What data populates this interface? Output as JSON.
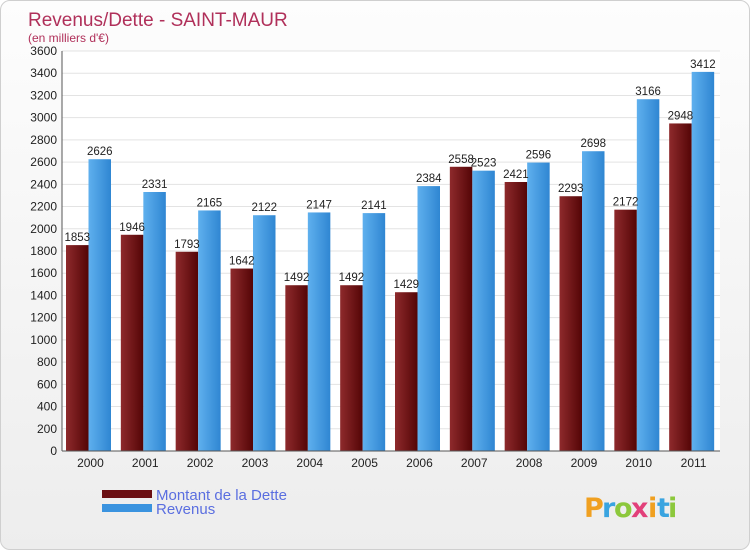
{
  "chart_data": {
    "type": "bar",
    "title": "Revenus/Dette - SAINT-MAUR",
    "subtitle": "(en milliers d'€)",
    "categories": [
      "2000",
      "2001",
      "2002",
      "2003",
      "2004",
      "2005",
      "2006",
      "2007",
      "2008",
      "2009",
      "2010",
      "2011"
    ],
    "series": [
      {
        "name": "Montant de la Dette",
        "color": "#6b0f12",
        "values": [
          1853,
          1946,
          1793,
          1642,
          1492,
          1492,
          1429,
          2558,
          2421,
          2293,
          2172,
          2948
        ]
      },
      {
        "name": "Revenus",
        "color": "#3a93df",
        "values": [
          2626,
          2331,
          2165,
          2122,
          2147,
          2141,
          2384,
          2523,
          2596,
          2698,
          3166,
          3412
        ]
      }
    ],
    "ylim": [
      0,
      3600
    ],
    "ytick_step": 200,
    "grid": true,
    "legend": "bottom-left"
  },
  "logo": {
    "letters": [
      "P",
      "r",
      "o",
      "x",
      "i",
      "t",
      "i"
    ],
    "colors": [
      "#f0a020",
      "#39a4e0",
      "#8cc83c",
      "#e2407a",
      "#f0a020",
      "#39a4e0",
      "#8cc83c"
    ]
  }
}
